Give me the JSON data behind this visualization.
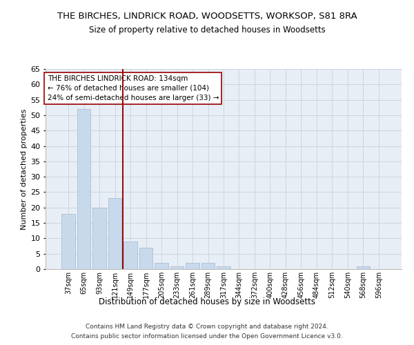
{
  "title": "THE BIRCHES, LINDRICK ROAD, WOODSETTS, WORKSOP, S81 8RA",
  "subtitle": "Size of property relative to detached houses in Woodsetts",
  "xlabel": "Distribution of detached houses by size in Woodsetts",
  "ylabel": "Number of detached properties",
  "bar_color": "#c8d9ec",
  "bar_edge_color": "#a8bfd8",
  "categories": [
    "37sqm",
    "65sqm",
    "93sqm",
    "121sqm",
    "149sqm",
    "177sqm",
    "205sqm",
    "233sqm",
    "261sqm",
    "289sqm",
    "317sqm",
    "344sqm",
    "372sqm",
    "400sqm",
    "428sqm",
    "456sqm",
    "484sqm",
    "512sqm",
    "540sqm",
    "568sqm",
    "596sqm"
  ],
  "values": [
    18,
    52,
    20,
    23,
    9,
    7,
    2,
    1,
    2,
    2,
    1,
    0,
    0,
    0,
    0,
    0,
    0,
    0,
    0,
    1,
    0
  ],
  "ylim": [
    0,
    65
  ],
  "yticks": [
    0,
    5,
    10,
    15,
    20,
    25,
    30,
    35,
    40,
    45,
    50,
    55,
    60,
    65
  ],
  "vline_x": 3.5,
  "vline_color": "#990000",
  "annotation_title": "THE BIRCHES LINDRICK ROAD: 134sqm",
  "annotation_line1": "← 76% of detached houses are smaller (104)",
  "annotation_line2": "24% of semi-detached houses are larger (33) →",
  "annotation_box_color": "#ffffff",
  "annotation_border_color": "#990000",
  "grid_color": "#ccd5e0",
  "background_color": "#e8eef5",
  "footnote1": "Contains HM Land Registry data © Crown copyright and database right 2024.",
  "footnote2": "Contains public sector information licensed under the Open Government Licence v3.0."
}
